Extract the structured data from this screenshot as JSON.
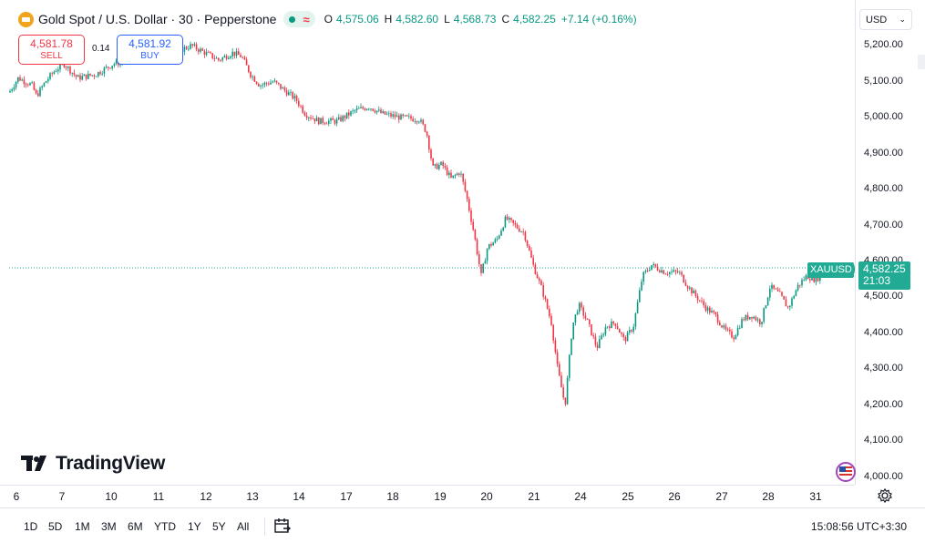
{
  "legend": {
    "title": "Gold Spot / U.S. Dollar · 30 · Pepperstone",
    "status_icon": "approx-icon",
    "open_label": "O",
    "open": "4,575.06",
    "high_label": "H",
    "high": "4,582.60",
    "low_label": "L",
    "low": "4,568.73",
    "close_label": "C",
    "close": "4,582.25",
    "change": "+7.14 (+0.16%)"
  },
  "trade": {
    "sell_price": "4,581.78",
    "sell_label": "SELL",
    "spread": "0.14",
    "buy_price": "4,581.92",
    "buy_label": "BUY"
  },
  "currency": {
    "value": "USD"
  },
  "price_axis": {
    "ticks": [
      "5,200.00",
      "5,100.00",
      "5,000.00",
      "4,900.00",
      "4,800.00",
      "4,700.00",
      "4,600.00",
      "4,500.00",
      "4,400.00",
      "4,300.00",
      "4,200.00",
      "4,100.00",
      "4,000.00"
    ]
  },
  "last_price": {
    "symbol": "XAUUSD",
    "price": "4,582.25",
    "countdown": "21:03"
  },
  "time_axis": {
    "ticks": [
      "6",
      "7",
      "10",
      "11",
      "12",
      "13",
      "14",
      "17",
      "18",
      "19",
      "20",
      "21",
      "24",
      "25",
      "26",
      "27",
      "28",
      "31"
    ]
  },
  "ranges": [
    "1D",
    "5D",
    "1M",
    "3M",
    "6M",
    "YTD",
    "1Y",
    "5Y",
    "All"
  ],
  "clock": "15:08:56 UTC+3:30",
  "logo_text": "TradingView",
  "colors": {
    "up": "#089981",
    "down": "#f23645",
    "label_bg": "#22ab94",
    "price_line": "#22ab94"
  },
  "chart_data": {
    "type": "candlestick",
    "ylim": [
      4000,
      5230
    ],
    "price_line": 4582.25,
    "anchors": [
      [
        0,
        5070
      ],
      [
        10,
        5110
      ],
      [
        25,
        5090
      ],
      [
        30,
        5060
      ],
      [
        40,
        5100
      ],
      [
        50,
        5130
      ],
      [
        60,
        5150
      ],
      [
        75,
        5110
      ],
      [
        95,
        5120
      ],
      [
        115,
        5150
      ],
      [
        135,
        5160
      ],
      [
        160,
        5170
      ],
      [
        180,
        5180
      ],
      [
        200,
        5200
      ],
      [
        215,
        5180
      ],
      [
        230,
        5160
      ],
      [
        245,
        5180
      ],
      [
        255,
        5170
      ],
      [
        265,
        5120
      ],
      [
        275,
        5090
      ],
      [
        290,
        5100
      ],
      [
        305,
        5070
      ],
      [
        315,
        5050
      ],
      [
        325,
        5010
      ],
      [
        340,
        4990
      ],
      [
        360,
        4990
      ],
      [
        380,
        5020
      ],
      [
        395,
        5030
      ],
      [
        410,
        5010
      ],
      [
        430,
        5000
      ],
      [
        450,
        4995
      ],
      [
        458,
        4960
      ],
      [
        465,
        4860
      ],
      [
        475,
        4870
      ],
      [
        485,
        4830
      ],
      [
        495,
        4850
      ],
      [
        502,
        4780
      ],
      [
        510,
        4680
      ],
      [
        518,
        4560
      ],
      [
        525,
        4640
      ],
      [
        535,
        4660
      ],
      [
        545,
        4720
      ],
      [
        555,
        4700
      ],
      [
        565,
        4680
      ],
      [
        575,
        4590
      ],
      [
        585,
        4520
      ],
      [
        595,
        4430
      ],
      [
        602,
        4300
      ],
      [
        610,
        4200
      ],
      [
        618,
        4420
      ],
      [
        625,
        4480
      ],
      [
        635,
        4430
      ],
      [
        645,
        4360
      ],
      [
        655,
        4420
      ],
      [
        665,
        4430
      ],
      [
        675,
        4380
      ],
      [
        685,
        4420
      ],
      [
        695,
        4560
      ],
      [
        705,
        4590
      ],
      [
        720,
        4570
      ],
      [
        735,
        4570
      ],
      [
        745,
        4530
      ],
      [
        755,
        4500
      ],
      [
        765,
        4470
      ],
      [
        775,
        4450
      ],
      [
        785,
        4410
      ],
      [
        795,
        4390
      ],
      [
        805,
        4440
      ],
      [
        815,
        4450
      ],
      [
        825,
        4430
      ],
      [
        835,
        4530
      ],
      [
        845,
        4510
      ],
      [
        855,
        4470
      ],
      [
        865,
        4530
      ],
      [
        875,
        4560
      ],
      [
        885,
        4550
      ],
      [
        895,
        4570
      ],
      [
        905,
        4580
      ],
      [
        915,
        4575
      ],
      [
        927,
        4582
      ]
    ]
  }
}
